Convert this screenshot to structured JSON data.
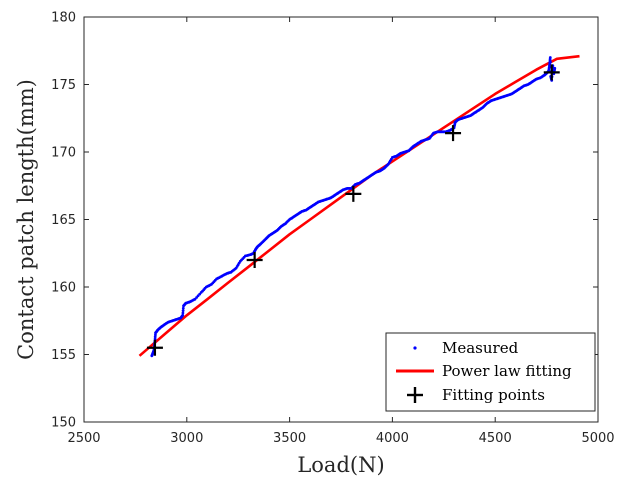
{
  "chart_data": {
    "type": "scatter",
    "xlabel": "Load(N)",
    "ylabel": "Contact patch length(mm)",
    "xlim": [
      2500,
      5000
    ],
    "ylim": [
      150,
      180
    ],
    "xticks": [
      2500,
      3000,
      3500,
      4000,
      4500,
      5000
    ],
    "yticks": [
      150,
      155,
      160,
      165,
      170,
      175,
      180
    ],
    "grid": false,
    "legend_position": "bottom-right",
    "series": [
      {
        "name": "Measured",
        "kind": "dots",
        "color": "#0000ff",
        "points": [
          [
            2830,
            154.9
          ],
          [
            2835,
            155.1
          ],
          [
            2840,
            155.3
          ],
          [
            2843,
            155.6
          ],
          [
            2845,
            156.0
          ],
          [
            2848,
            156.6
          ],
          [
            2858,
            156.8
          ],
          [
            2872,
            157.0
          ],
          [
            2890,
            157.2
          ],
          [
            2910,
            157.4
          ],
          [
            2930,
            157.5
          ],
          [
            2950,
            157.6
          ],
          [
            2970,
            157.7
          ],
          [
            2980,
            157.9
          ],
          [
            2984,
            158.6
          ],
          [
            2995,
            158.8
          ],
          [
            3015,
            158.9
          ],
          [
            3040,
            159.1
          ],
          [
            3070,
            159.6
          ],
          [
            3095,
            160.0
          ],
          [
            3120,
            160.2
          ],
          [
            3145,
            160.6
          ],
          [
            3170,
            160.8
          ],
          [
            3195,
            161.0
          ],
          [
            3215,
            161.1
          ],
          [
            3240,
            161.4
          ],
          [
            3260,
            161.9
          ],
          [
            3285,
            162.3
          ],
          [
            3310,
            162.4
          ],
          [
            3325,
            162.5
          ],
          [
            3335,
            162.8
          ],
          [
            3345,
            163.0
          ],
          [
            3360,
            163.2
          ],
          [
            3380,
            163.5
          ],
          [
            3400,
            163.8
          ],
          [
            3420,
            164.0
          ],
          [
            3440,
            164.2
          ],
          [
            3460,
            164.5
          ],
          [
            3480,
            164.7
          ],
          [
            3500,
            165.0
          ],
          [
            3520,
            165.2
          ],
          [
            3540,
            165.4
          ],
          [
            3560,
            165.6
          ],
          [
            3580,
            165.7
          ],
          [
            3600,
            165.9
          ],
          [
            3620,
            166.1
          ],
          [
            3640,
            166.3
          ],
          [
            3660,
            166.4
          ],
          [
            3680,
            166.5
          ],
          [
            3700,
            166.6
          ],
          [
            3720,
            166.8
          ],
          [
            3740,
            167.0
          ],
          [
            3760,
            167.2
          ],
          [
            3780,
            167.3
          ],
          [
            3800,
            167.3
          ],
          [
            3820,
            167.6
          ],
          [
            3840,
            167.7
          ],
          [
            3860,
            167.9
          ],
          [
            3880,
            168.1
          ],
          [
            3900,
            168.3
          ],
          [
            3920,
            168.5
          ],
          [
            3940,
            168.6
          ],
          [
            3960,
            168.8
          ],
          [
            3980,
            169.1
          ],
          [
            4000,
            169.6
          ],
          [
            4020,
            169.7
          ],
          [
            4040,
            169.9
          ],
          [
            4060,
            170.0
          ],
          [
            4080,
            170.1
          ],
          [
            4100,
            170.4
          ],
          [
            4120,
            170.6
          ],
          [
            4140,
            170.8
          ],
          [
            4160,
            170.9
          ],
          [
            4180,
            171.0
          ],
          [
            4200,
            171.4
          ],
          [
            4220,
            171.5
          ],
          [
            4240,
            171.5
          ],
          [
            4260,
            171.5
          ],
          [
            4280,
            171.6
          ],
          [
            4300,
            171.8
          ],
          [
            4305,
            172.2
          ],
          [
            4320,
            172.4
          ],
          [
            4340,
            172.5
          ],
          [
            4360,
            172.6
          ],
          [
            4380,
            172.7
          ],
          [
            4400,
            172.9
          ],
          [
            4420,
            173.1
          ],
          [
            4440,
            173.3
          ],
          [
            4460,
            173.6
          ],
          [
            4480,
            173.8
          ],
          [
            4500,
            173.9
          ],
          [
            4520,
            174.0
          ],
          [
            4540,
            174.1
          ],
          [
            4560,
            174.2
          ],
          [
            4580,
            174.3
          ],
          [
            4600,
            174.5
          ],
          [
            4620,
            174.7
          ],
          [
            4640,
            174.9
          ],
          [
            4660,
            175.0
          ],
          [
            4680,
            175.2
          ],
          [
            4700,
            175.4
          ],
          [
            4720,
            175.5
          ],
          [
            4740,
            175.7
          ],
          [
            4755,
            175.9
          ],
          [
            4760,
            176.0
          ],
          [
            4765,
            176.5
          ],
          [
            4768,
            177.0
          ],
          [
            4770,
            175.6
          ],
          [
            4775,
            175.3
          ],
          [
            4780,
            176.4
          ],
          [
            4785,
            175.8
          ],
          [
            4790,
            176.2
          ]
        ]
      },
      {
        "name": "Power law fitting",
        "kind": "line",
        "color": "#ff0000",
        "x": [
          2770,
          2900,
          3000,
          3100,
          3200,
          3300,
          3400,
          3500,
          3600,
          3700,
          3800,
          3900,
          4000,
          4100,
          4200,
          4300,
          4400,
          4500,
          4600,
          4700,
          4800,
          4910
        ],
        "values": [
          154.9,
          156.6,
          157.9,
          159.1,
          160.3,
          161.5,
          162.7,
          163.9,
          165.0,
          166.1,
          167.2,
          168.3,
          169.3,
          170.3,
          171.3,
          172.3,
          173.3,
          174.3,
          175.2,
          176.1,
          176.9,
          177.1
        ]
      },
      {
        "name": "Fitting points",
        "kind": "plus",
        "color": "#000000",
        "points": [
          [
            2845,
            155.5
          ],
          [
            3330,
            162.0
          ],
          [
            3810,
            166.9
          ],
          [
            4295,
            171.4
          ],
          [
            4775,
            175.9
          ]
        ]
      }
    ]
  }
}
